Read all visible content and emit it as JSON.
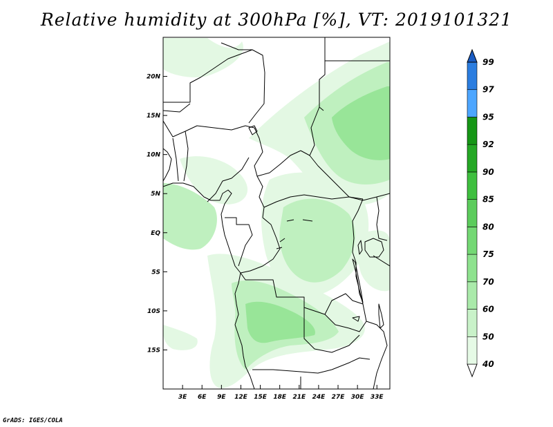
{
  "title": "Relative humidity at 300hPa [%], VT: 2019101321",
  "footer": "GrADS: IGES/COLA",
  "map": {
    "lon_range": [
      0,
      35
    ],
    "lat_range": [
      -20,
      25
    ],
    "x_ticks": [
      {
        "lon": 3,
        "label": "3E"
      },
      {
        "lon": 6,
        "label": "6E"
      },
      {
        "lon": 9,
        "label": "9E"
      },
      {
        "lon": 12,
        "label": "12E"
      },
      {
        "lon": 15,
        "label": "15E"
      },
      {
        "lon": 18,
        "label": "18E"
      },
      {
        "lon": 21,
        "label": "21E"
      },
      {
        "lon": 24,
        "label": "24E"
      },
      {
        "lon": 27,
        "label": "27E"
      },
      {
        "lon": 30,
        "label": "30E"
      },
      {
        "lon": 33,
        "label": "33E"
      }
    ],
    "y_ticks": [
      {
        "lat": 20,
        "label": "20N"
      },
      {
        "lat": 15,
        "label": "15N"
      },
      {
        "lat": 10,
        "label": "10N"
      },
      {
        "lat": 5,
        "label": "5N"
      },
      {
        "lat": 0,
        "label": "EQ"
      },
      {
        "lat": -5,
        "label": "5S"
      },
      {
        "lat": -10,
        "label": "10S"
      },
      {
        "lat": -15,
        "label": "15S"
      }
    ]
  },
  "colorbar": {
    "levels": [
      "40",
      "50",
      "60",
      "70",
      "75",
      "80",
      "85",
      "90",
      "92",
      "95",
      "97",
      "99"
    ],
    "colors": [
      "#ffffff",
      "#e6fae6",
      "#c9f2c9",
      "#aaeaaa",
      "#8ee28e",
      "#74d874",
      "#5ccc5c",
      "#3fbf3f",
      "#25a825",
      "#169616",
      "#4da6ff",
      "#2b7de0",
      "#1a5cc2"
    ]
  },
  "shading": {
    "palette": {
      "light": "#e3f8e3",
      "mid": "#bff0bf",
      "strong": "#98e598",
      "deep": "#7edc7e"
    }
  }
}
